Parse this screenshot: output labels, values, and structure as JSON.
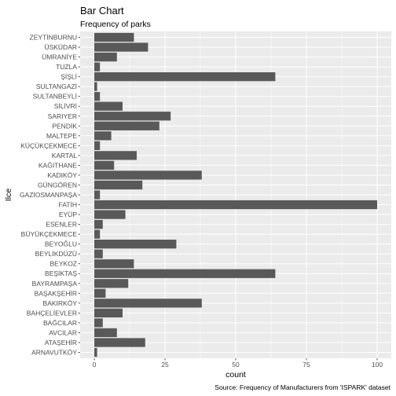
{
  "chart_data": {
    "type": "bar",
    "orientation": "horizontal",
    "title": "Bar Chart",
    "subtitle": "Frequency of parks",
    "xlabel": "count",
    "ylabel": "Ilce",
    "caption": "Source: Frequency of Manufacturers from 'ISPARK' dataset",
    "xlim": [
      0,
      100
    ],
    "xticks": [
      "0",
      "25",
      "50",
      "75",
      "100"
    ],
    "grid": true,
    "legend": "none",
    "bar_color": "#595959",
    "panel_color": "#ebebeb",
    "categories": [
      "ZEYTİNBURNU",
      "ÜSKÜDAR",
      "ÜMRANİYE",
      "TUZLA",
      "ŞİŞLİ",
      "SULTANGAZİ",
      "SULTANBEYLİ",
      "SİLİVRİ",
      "SARIYER",
      "PENDİK",
      "MALTEPE",
      "KÜÇÜKÇEKMECE",
      "KARTAL",
      "KAĞITHANE",
      "KADIKÖY",
      "GÜNGÖREN",
      "GAZİOSMANPAŞA",
      "FATİH",
      "EYÜP",
      "ESENLER",
      "BÜYÜKÇEKMECE",
      "BEYOĞLU",
      "BEYLİKDÜZÜ",
      "BEYKOZ",
      "BEŞİKTAŞ",
      "BAYRAMPAŞA",
      "BAŞAKŞEHİR",
      "BAKIRKÖY",
      "BAHÇELİEVLER",
      "BAĞCILAR",
      "AVCILAR",
      "ATAŞEHİR",
      "ARNAVUTKÖY"
    ],
    "values": [
      14,
      19,
      8,
      2,
      64,
      1,
      2,
      10,
      27,
      23,
      6,
      2,
      15,
      7,
      38,
      17,
      2,
      100,
      11,
      3,
      2,
      29,
      3,
      14,
      64,
      12,
      4,
      38,
      10,
      3,
      8,
      18,
      1
    ]
  }
}
